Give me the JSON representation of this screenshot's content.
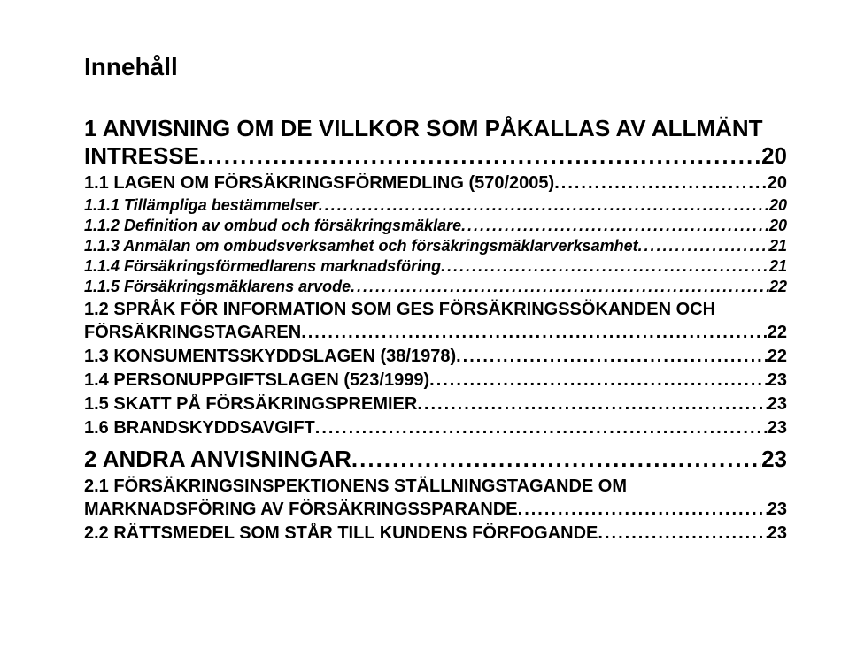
{
  "doc": {
    "title": "Innehåll"
  },
  "toc": {
    "e1": {
      "line1": "1 ANVISNING OM DE VILLKOR SOM PÅKALLAS AV ALLMÄNT",
      "line2_label": "INTRESSE",
      "page": "20"
    },
    "e2": {
      "label": "1.1 LAGEN OM FÖRSÄKRINGSFÖRMEDLING (570/2005)",
      "page": "20"
    },
    "e3": {
      "label": "1.1.1 Tillämpliga bestämmelser",
      "page": "20"
    },
    "e4": {
      "label": "1.1.2 Definition av ombud och försäkringsmäklare",
      "page": "20"
    },
    "e5": {
      "label": "1.1.3 Anmälan om ombudsverksamhet och försäkringsmäklarverksamhet",
      "page": "21"
    },
    "e6": {
      "label": "1.1.4 Försäkringsförmedlarens marknadsföring",
      "page": "21"
    },
    "e7": {
      "label": "1.1.5 Försäkringsmäklarens arvode",
      "page": "22"
    },
    "e8": {
      "line1": "1.2 SPRÅK FÖR INFORMATION SOM GES FÖRSÄKRINGSSÖKANDEN OCH",
      "line2_label": "FÖRSÄKRINGSTAGAREN",
      "page": "22"
    },
    "e9": {
      "label": "1.3 KONSUMENTSSKYDDSLAGEN (38/1978)",
      "page": "22"
    },
    "e10": {
      "label": "1.4 PERSONUPPGIFTSLAGEN (523/1999)",
      "page": "23"
    },
    "e11": {
      "label": "1.5 SKATT PÅ FÖRSÄKRINGSPREMIER",
      "page": "23"
    },
    "e12": {
      "label": "1.6 BRANDSKYDDSAVGIFT",
      "page": "23"
    },
    "e13": {
      "label": "2 ANDRA ANVISNINGAR",
      "page": "23"
    },
    "e14": {
      "line1": "2.1 FÖRSÄKRINGSINSPEKTIONENS STÄLLNINGSTAGANDE OM",
      "line2_label": "MARKNADSFÖRING AV FÖRSÄKRINGSSPARANDE",
      "page": "23"
    },
    "e15": {
      "label": "2.2 RÄTTSMEDEL SOM STÅR TILL KUNDENS FÖRFOGANDE",
      "page": "23"
    }
  }
}
